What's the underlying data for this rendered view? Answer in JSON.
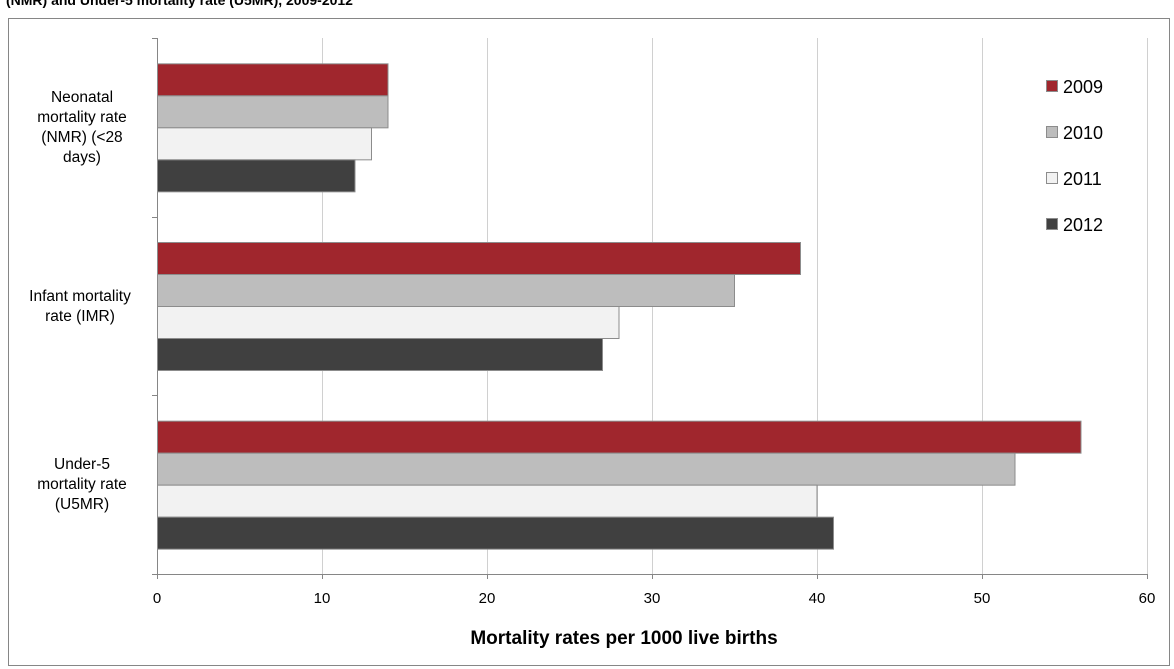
{
  "header": {
    "clipped_title": "(NMR) and Under-5 mortality rate (U5MR), 2009-2012"
  },
  "chart_data": {
    "type": "bar",
    "orientation": "horizontal",
    "categories": [
      "Neonatal mortality rate (NMR) (<28 days)",
      "Infant mortality rate (IMR)",
      "Under-5 mortality rate (U5MR)"
    ],
    "series": [
      {
        "name": "2009",
        "values": [
          14,
          39,
          56
        ],
        "color": "#A0262D"
      },
      {
        "name": "2010",
        "values": [
          14,
          35,
          52
        ],
        "color": "#BDBDBD"
      },
      {
        "name": "2011",
        "values": [
          13,
          28,
          40
        ],
        "color": "#F2F2F2"
      },
      {
        "name": "2012",
        "values": [
          12,
          27,
          41
        ],
        "color": "#404040"
      }
    ],
    "xlabel": "Mortality rates per 1000 live births",
    "ylabel": "",
    "xlim": [
      0,
      60
    ],
    "xticks": [
      0,
      10,
      20,
      30,
      40,
      50,
      60
    ],
    "grid": "vertical",
    "legend_position": "top-right"
  }
}
